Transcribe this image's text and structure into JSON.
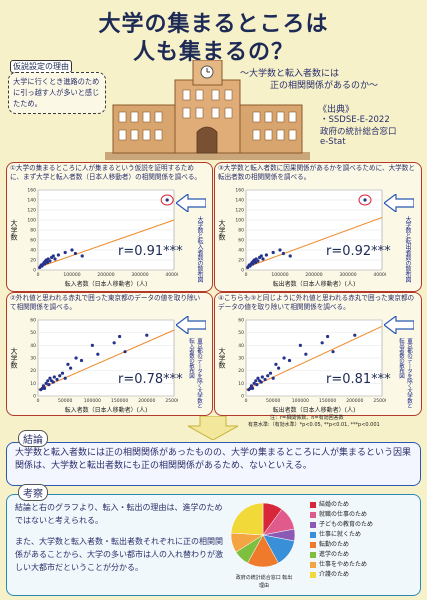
{
  "title_line1": "大学の集まるところは",
  "title_line2": "人も集まるの？",
  "hypothesis": {
    "label": "仮説設定の理由",
    "text": "大学に行くとき進路のために引っ越す人が多いと感じたため。"
  },
  "subtitle_line1": "〜大学数と転入者数には",
  "subtitle_line2": "正の相関関係があるのか〜",
  "source": {
    "label": "《出典》",
    "lines": [
      "・SSDSE-E-2022",
      "政府の統計総合窓口",
      "e-Stat"
    ]
  },
  "panels": [
    {
      "num": "①",
      "text": "大学の集まるところに人が集まるという仮説を証明するために、まず大学と転入者数（日本人移動者）の相関関係を調べる。",
      "r": "r=0.91***",
      "xlabel": "転入者数（日本人移動者）(人)",
      "ylabel": "大学数",
      "side": "大学数と転入者数の散布図"
    },
    {
      "num": "③",
      "text": "大学数と転入者数に因果関係があるかを調べるために、大学数と転出者数の相関関係を調べる。",
      "r": "r=0.92***",
      "xlabel": "転出者数（日本人移動者）(人)",
      "ylabel": "大学数",
      "side": "大学数と転出者数の散布図"
    },
    {
      "num": "②",
      "text": "外れ値と思われる赤丸で囲った東京都のデータの値を取り除いて相関関係を調べる。",
      "r": "r=0.78***",
      "xlabel": "転入者数（日本人移動者）(人)",
      "ylabel": "大学数",
      "side": "東京都のデータを除く大学数と転入者数の散布図"
    },
    {
      "num": "④",
      "text": "こちらも③と同じように外れ値と思われる赤丸で囲った東京都のデータの値を取り除いて相関関係を調べる。",
      "r": "r=0.81***",
      "xlabel": "転出者数（日本人移動者）(人)",
      "ylabel": "大学数",
      "side": "東京都のデータを除く大学数と転出者数の散布図"
    }
  ],
  "note_line1": "注：r=相関係数、n=有効回答数",
  "note_line2": "有意水準:（有効水準）*p<0.05, **p<0.01, ***p<0.001",
  "conclusion": {
    "label": "結論",
    "text": "大学数と転入者数には正の相関関係があったものの、大学の集まるところに人が集まるという因果関係は、大学数と転出者数にも正の相関関係があるため、ないといえる。"
  },
  "discussion": {
    "label": "考察",
    "p1": "結論と右のグラフより、転入・転出の理由は、進学のためではないと考えられる。",
    "p2": "また、大学数と転入者数・転出者数それぞれに正の相関関係があることから、大学の多い都市は人の入れ替わりが激しい大都市だということが分かる。"
  },
  "pie_caption": "政府の統計総合窓口 転出理由",
  "chart_data": [
    {
      "type": "scatter",
      "title": "",
      "xlabel": "転入者数（日本人移動者）(人)",
      "ylabel": "大学数",
      "xlim": [
        0,
        400000
      ],
      "ylim": [
        0,
        160
      ],
      "xticks": [
        "0",
        "100000",
        "200000",
        "300000",
        "400000"
      ],
      "yticks": [
        "0",
        "20",
        "40",
        "60",
        "80",
        "100",
        "120",
        "140",
        "160"
      ],
      "points": [
        [
          5000,
          5
        ],
        [
          8000,
          8
        ],
        [
          10000,
          10
        ],
        [
          12000,
          8
        ],
        [
          15000,
          12
        ],
        [
          18000,
          15
        ],
        [
          20000,
          12
        ],
        [
          22000,
          18
        ],
        [
          25000,
          20
        ],
        [
          28000,
          15
        ],
        [
          30000,
          22
        ],
        [
          35000,
          18
        ],
        [
          40000,
          25
        ],
        [
          45000,
          28
        ],
        [
          50000,
          22
        ],
        [
          60000,
          30
        ],
        [
          80000,
          35
        ],
        [
          100000,
          40
        ],
        [
          110000,
          33
        ],
        [
          130000,
          28
        ],
        [
          380000,
          140
        ]
      ],
      "trend": [
        [
          0,
          5
        ],
        [
          400000,
          100
        ]
      ]
    },
    {
      "type": "scatter",
      "title": "",
      "xlabel": "転出者数（日本人移動者）(人)",
      "ylabel": "大学数",
      "xlim": [
        0,
        400000
      ],
      "ylim": [
        0,
        160
      ],
      "xticks": [
        "0",
        "100000",
        "200000",
        "300000",
        "400000"
      ],
      "yticks": [
        "0",
        "20",
        "40",
        "60",
        "80",
        "100",
        "120",
        "140",
        "160"
      ],
      "points": [
        [
          5000,
          5
        ],
        [
          8000,
          8
        ],
        [
          10000,
          10
        ],
        [
          12000,
          8
        ],
        [
          15000,
          12
        ],
        [
          18000,
          15
        ],
        [
          20000,
          12
        ],
        [
          22000,
          18
        ],
        [
          25000,
          20
        ],
        [
          28000,
          15
        ],
        [
          30000,
          22
        ],
        [
          35000,
          18
        ],
        [
          40000,
          25
        ],
        [
          45000,
          28
        ],
        [
          50000,
          22
        ],
        [
          60000,
          30
        ],
        [
          80000,
          35
        ],
        [
          100000,
          40
        ],
        [
          110000,
          33
        ],
        [
          130000,
          28
        ],
        [
          350000,
          140
        ]
      ],
      "trend": [
        [
          0,
          5
        ],
        [
          400000,
          105
        ]
      ]
    },
    {
      "type": "scatter",
      "title": "",
      "xlabel": "転入者数（日本人移動者）(人)",
      "ylabel": "大学数",
      "xlim": [
        0,
        250000
      ],
      "ylim": [
        0,
        60
      ],
      "xticks": [
        "0",
        "50000",
        "100000",
        "150000",
        "200000",
        "250000"
      ],
      "yticks": [
        "0",
        "10",
        "20",
        "30",
        "40",
        "50",
        "60"
      ],
      "points": [
        [
          5000,
          5
        ],
        [
          8000,
          6
        ],
        [
          10000,
          8
        ],
        [
          12000,
          6
        ],
        [
          15000,
          10
        ],
        [
          18000,
          12
        ],
        [
          20000,
          9
        ],
        [
          22000,
          14
        ],
        [
          25000,
          12
        ],
        [
          28000,
          11
        ],
        [
          30000,
          15
        ],
        [
          35000,
          13
        ],
        [
          40000,
          16
        ],
        [
          45000,
          18
        ],
        [
          50000,
          14
        ],
        [
          55000,
          25
        ],
        [
          60000,
          22
        ],
        [
          70000,
          30
        ],
        [
          80000,
          28
        ],
        [
          100000,
          40
        ],
        [
          110000,
          33
        ],
        [
          140000,
          42
        ],
        [
          150000,
          47
        ],
        [
          160000,
          35
        ],
        [
          200000,
          48
        ]
      ],
      "trend": [
        [
          0,
          5
        ],
        [
          250000,
          52
        ]
      ]
    },
    {
      "type": "scatter",
      "title": "",
      "xlabel": "転出者数（日本人移動者）(人)",
      "ylabel": "大学数",
      "xlim": [
        0,
        250000
      ],
      "ylim": [
        0,
        60
      ],
      "xticks": [
        "0",
        "50000",
        "100000",
        "150000",
        "200000",
        "250000"
      ],
      "yticks": [
        "0",
        "10",
        "20",
        "30",
        "40",
        "50",
        "60"
      ],
      "points": [
        [
          5000,
          5
        ],
        [
          8000,
          6
        ],
        [
          10000,
          8
        ],
        [
          12000,
          6
        ],
        [
          15000,
          10
        ],
        [
          18000,
          12
        ],
        [
          20000,
          9
        ],
        [
          22000,
          14
        ],
        [
          25000,
          12
        ],
        [
          28000,
          11
        ],
        [
          30000,
          15
        ],
        [
          35000,
          13
        ],
        [
          40000,
          16
        ],
        [
          45000,
          18
        ],
        [
          50000,
          14
        ],
        [
          55000,
          25
        ],
        [
          60000,
          22
        ],
        [
          70000,
          30
        ],
        [
          80000,
          28
        ],
        [
          100000,
          40
        ],
        [
          110000,
          33
        ],
        [
          140000,
          42
        ],
        [
          150000,
          47
        ],
        [
          160000,
          35
        ],
        [
          200000,
          48
        ]
      ],
      "trend": [
        [
          0,
          5
        ],
        [
          250000,
          55
        ]
      ]
    },
    {
      "type": "pie",
      "title": "",
      "slices": [
        {
          "label": "結婚のため",
          "value": 10,
          "color": "#d8263a"
        },
        {
          "label": "就職の仕事のため",
          "value": 12,
          "color": "#e05a8c"
        },
        {
          "label": "子どもの教育のため",
          "value": 6,
          "color": "#8a5ab5"
        },
        {
          "label": "仕事に就くため",
          "value": 14,
          "color": "#3a8fd9"
        },
        {
          "label": "転勤のため",
          "value": 16,
          "color": "#f07a2b"
        },
        {
          "label": "進学のため",
          "value": 8,
          "color": "#7fbf3f"
        },
        {
          "label": "仕事をやめたため",
          "value": 10,
          "color": "#f2a541"
        },
        {
          "label": "介護のため",
          "value": 24,
          "color": "#f2d93a"
        }
      ]
    }
  ]
}
